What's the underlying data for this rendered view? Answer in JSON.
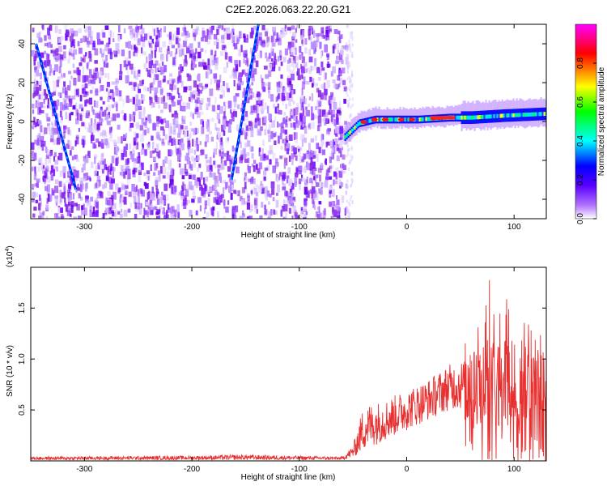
{
  "chart_data": [
    {
      "type": "heatmap",
      "title": "C2E2.2026.063.22.20.G21",
      "xlabel": "Height of straight line (km)",
      "ylabel": "Frequency (Hz)",
      "xlim": [
        -350,
        130
      ],
      "ylim": [
        -50,
        50
      ],
      "x_ticks": [
        -300,
        -200,
        -100,
        0,
        100
      ],
      "x_tick_labels": [
        "-300",
        "-200",
        "-100",
        "0",
        "100"
      ],
      "y_ticks": [
        -40,
        -20,
        0,
        20,
        40
      ],
      "y_tick_labels": [
        "-40",
        "-20",
        "0",
        "20",
        "40"
      ],
      "colorbar": {
        "label": "Normalized spectral amplitude",
        "range": [
          0,
          1
        ],
        "ticks": [
          0.0,
          0.2,
          0.4,
          0.6,
          0.8
        ],
        "tick_labels": [
          "0.0",
          "0.2",
          "0.4",
          "0.6",
          "0.8"
        ],
        "colormap": [
          "#ffffff",
          "#8000ff",
          "#0000ff",
          "#00ffff",
          "#00ff00",
          "#ffff00",
          "#ff0000",
          "#ff00ff"
        ]
      },
      "features": [
        {
          "name": "noise-region",
          "x_range": [
            -350,
            -57
          ],
          "freq_range": [
            -50,
            50
          ],
          "amplitude": 0.1
        },
        {
          "name": "signal-band",
          "points": [
            [
              -58,
              -8
            ],
            [
              -45,
              -1
            ],
            [
              -30,
              1
            ],
            [
              -10,
              1
            ],
            [
              10,
              1
            ],
            [
              40,
              2
            ],
            [
              60,
              2
            ],
            [
              90,
              3
            ],
            [
              130,
              4
            ]
          ],
          "amplitude": 0.6
        },
        {
          "name": "streak-1",
          "points": [
            [
              -345,
              40
            ],
            [
              -308,
              -35
            ]
          ]
        },
        {
          "name": "streak-2",
          "points": [
            [
              -163,
              -30
            ],
            [
              -138,
              50
            ]
          ]
        }
      ]
    },
    {
      "type": "line",
      "ylabel": "SNR (10 * v/v)",
      "y_multiplier": "(x10",
      "y_multiplier_exp": "4",
      "xlabel": "Height of straight line (km)",
      "xlim": [
        -350,
        130
      ],
      "ylim": [
        0,
        1.9
      ],
      "x_ticks": [
        -300,
        -200,
        -100,
        0,
        100
      ],
      "x_tick_labels": [
        "-300",
        "-200",
        "-100",
        "0",
        "100"
      ],
      "y_ticks": [
        0.5,
        1.0,
        1.5
      ],
      "y_tick_labels": [
        "0.5",
        "1.0",
        "1.5"
      ],
      "color": "#e83030",
      "envelope": [
        {
          "x": -350,
          "low": 0.01,
          "high": 0.04
        },
        {
          "x": -200,
          "low": 0.01,
          "high": 0.05
        },
        {
          "x": -150,
          "low": 0.01,
          "high": 0.06
        },
        {
          "x": -60,
          "low": 0.01,
          "high": 0.04
        },
        {
          "x": -50,
          "low": 0.03,
          "high": 0.15
        },
        {
          "x": -40,
          "low": 0.1,
          "high": 0.55
        },
        {
          "x": -20,
          "low": 0.2,
          "high": 0.6
        },
        {
          "x": 0,
          "low": 0.3,
          "high": 0.7
        },
        {
          "x": 20,
          "low": 0.4,
          "high": 0.8
        },
        {
          "x": 40,
          "low": 0.5,
          "high": 0.95
        },
        {
          "x": 54,
          "low": 0.5,
          "high": 1.0
        },
        {
          "x": 55,
          "low": 0.0,
          "high": 1.3
        },
        {
          "x": 75,
          "low": 0.0,
          "high": 1.9
        },
        {
          "x": 100,
          "low": 0.0,
          "high": 1.5
        },
        {
          "x": 130,
          "low": 0.0,
          "high": 1.4
        }
      ]
    }
  ]
}
